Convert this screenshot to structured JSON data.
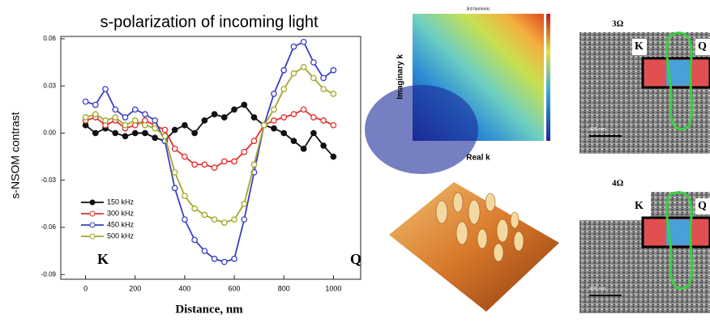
{
  "chart_data": {
    "type": "line",
    "title": "s-polarization of incoming light",
    "xlabel": "Distance, nm",
    "ylabel": "s-NSOM contrast",
    "annotations": [
      "K",
      "Q"
    ],
    "x": [
      0,
      40,
      80,
      120,
      160,
      200,
      240,
      280,
      320,
      360,
      400,
      440,
      480,
      520,
      560,
      600,
      640,
      680,
      720,
      760,
      800,
      840,
      880,
      920,
      960,
      1000
    ],
    "series": [
      {
        "name": "150 kHz",
        "color": "#111111",
        "marker": "filled",
        "values": [
          0.005,
          0.0,
          0.003,
          0.0,
          -0.002,
          0.0,
          0.0,
          -0.003,
          -0.005,
          0.002,
          0.005,
          0.0,
          0.008,
          0.012,
          0.01,
          0.015,
          0.018,
          0.01,
          0.005,
          0.003,
          0.0,
          -0.005,
          -0.01,
          0.0,
          -0.008,
          -0.015
        ]
      },
      {
        "name": "300 kHz",
        "color": "#e0302c",
        "marker": "open",
        "values": [
          0.008,
          0.01,
          0.005,
          0.008,
          0.003,
          0.005,
          0.008,
          0.005,
          0.002,
          -0.01,
          -0.015,
          -0.02,
          -0.02,
          -0.022,
          -0.018,
          -0.018,
          -0.012,
          -0.005,
          0.005,
          0.008,
          0.01,
          0.012,
          0.015,
          0.01,
          0.008,
          0.005
        ]
      },
      {
        "name": "450 kHz",
        "color": "#3a3fc4",
        "marker": "open",
        "values": [
          0.02,
          0.018,
          0.028,
          0.015,
          0.01,
          0.015,
          0.012,
          0.008,
          -0.005,
          -0.035,
          -0.055,
          -0.068,
          -0.075,
          -0.08,
          -0.082,
          -0.08,
          -0.055,
          -0.025,
          0.005,
          0.025,
          0.04,
          0.055,
          0.058,
          0.045,
          0.035,
          0.04
        ]
      },
      {
        "name": "500 kHz",
        "color": "#a5a52a",
        "marker": "open",
        "values": [
          0.01,
          0.012,
          0.008,
          0.01,
          0.005,
          0.008,
          0.005,
          0.003,
          -0.002,
          -0.025,
          -0.04,
          -0.048,
          -0.052,
          -0.055,
          -0.057,
          -0.055,
          -0.045,
          -0.02,
          0.005,
          0.015,
          0.028,
          0.038,
          0.042,
          0.035,
          0.028,
          0.025
        ]
      }
    ],
    "xlim": [
      -100,
      1110
    ],
    "ylim": [
      -0.093,
      0.0615
    ],
    "xticks": [
      0,
      200,
      400,
      600,
      800,
      1000
    ],
    "yticks": [
      0.06,
      0.03,
      {
        "value": 0,
        "label": "0.00"
      },
      -0.03,
      -0.06,
      -0.09
    ]
  },
  "panels": {
    "heatmap": {
      "title": "3rd harmonic",
      "xlabel": "Real k",
      "ylabel": "Imaginary k"
    },
    "snom": [
      {
        "label": "3Ω",
        "left": "K",
        "right": "Q",
        "scale": "400 nm"
      },
      {
        "label": "4Ω",
        "left": "K",
        "right": "Q",
        "scale": "400 nm"
      }
    ]
  }
}
